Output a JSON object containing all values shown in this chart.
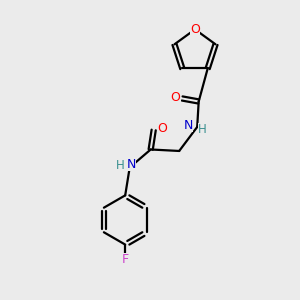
{
  "background_color": "#ebebeb",
  "bond_color": "#000000",
  "O_color": "#ff0000",
  "N_color": "#0000cc",
  "F_color": "#cc44cc",
  "H_color": "#3a9090",
  "figsize": [
    3.0,
    3.0
  ],
  "dpi": 100,
  "xlim": [
    0,
    10
  ],
  "ylim": [
    0,
    10
  ]
}
